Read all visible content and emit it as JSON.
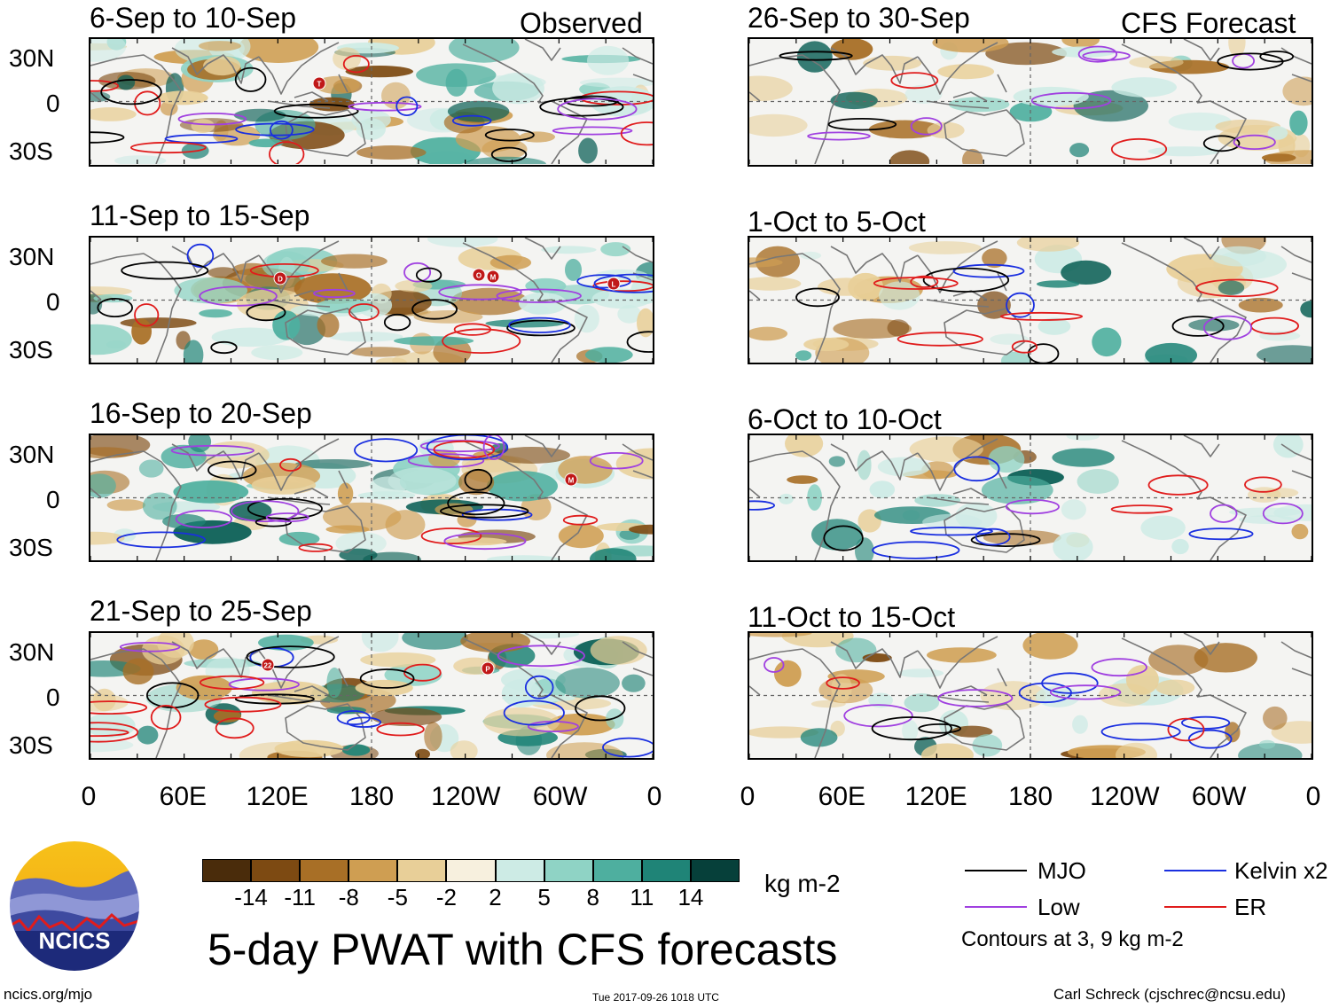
{
  "chart_data": {
    "type": "heatmap",
    "title": "5-day PWAT with CFS forecasts",
    "units": "kg m-2",
    "columns": [
      {
        "label": "Observed",
        "panels": [
          {
            "period": "6-Sep to 10-Sep"
          },
          {
            "period": "11-Sep to 15-Sep"
          },
          {
            "period": "16-Sep to 20-Sep"
          },
          {
            "period": "21-Sep to 25-Sep"
          }
        ]
      },
      {
        "label": "CFS Forecast",
        "panels": [
          {
            "period": "26-Sep to 30-Sep"
          },
          {
            "period": "1-Oct to 5-Oct"
          },
          {
            "period": "6-Oct to 10-Oct"
          },
          {
            "period": "11-Oct to 15-Oct"
          }
        ]
      }
    ],
    "y_ticks": [
      "30N",
      "0",
      "30S"
    ],
    "x_ticks": [
      "0",
      "60E",
      "120E",
      "180",
      "120W",
      "60W",
      "0"
    ],
    "colorbar": {
      "ticks": [
        "-14",
        "-11",
        "-8",
        "-5",
        "-2",
        "2",
        "5",
        "8",
        "11",
        "14"
      ],
      "colors": [
        "#4a2c0b",
        "#7d4a12",
        "#a86f26",
        "#cf9e52",
        "#e8cf98",
        "#f7f0de",
        "#ffffff",
        "#cdebe5",
        "#8fd3c5",
        "#4eaf9f",
        "#1f8477",
        "#0a5f55",
        "#06403a"
      ]
    },
    "legend": [
      {
        "label": "MJO",
        "color": "#000000"
      },
      {
        "label": "Kelvin x2",
        "color": "#1a2fe0"
      },
      {
        "label": "Low",
        "color": "#a040e0"
      },
      {
        "label": "ER",
        "color": "#e01c1c"
      }
    ],
    "contour_note": "Contours at 3, 9 kg m-2"
  },
  "logo": {
    "text": "NCICS"
  },
  "footer": {
    "left": "ncics.org/mjo",
    "center": "Tue 2017-09-26 1018 UTC",
    "right": "Carl Schreck (cjschrec@ncsu.edu)"
  },
  "storms": {
    "p0": [
      "T"
    ],
    "p1": [
      "D",
      "O",
      "M",
      "L"
    ],
    "p2": [
      "M"
    ],
    "p3": [
      "22",
      "P"
    ]
  }
}
